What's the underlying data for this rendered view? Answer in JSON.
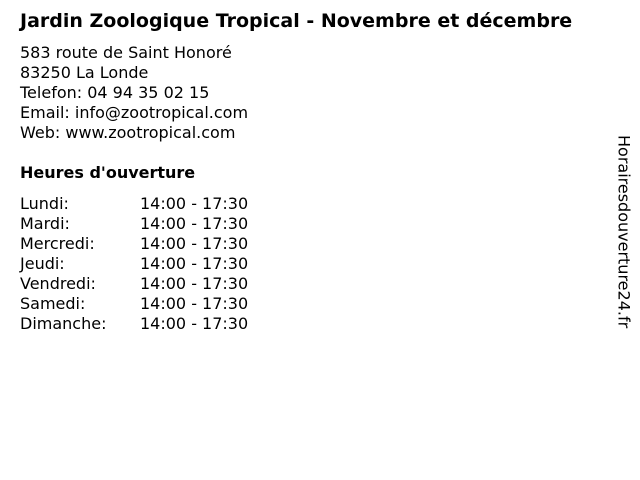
{
  "title": "Jardin Zoologique Tropical - Novembre et décembre",
  "address": {
    "street": "583 route de Saint Honoré",
    "city": "83250 La Londe",
    "phone": "Telefon: 04 94 35 02 15",
    "email": "Email: info@zootropical.com",
    "web": "Web: www.zootropical.com"
  },
  "hours_heading": "Heures d'ouverture",
  "hours": [
    {
      "day": "Lundi:",
      "time": "14:00 - 17:30"
    },
    {
      "day": "Mardi:",
      "time": "14:00 - 17:30"
    },
    {
      "day": "Mercredi:",
      "time": "14:00 - 17:30"
    },
    {
      "day": "Jeudi:",
      "time": "14:00 - 17:30"
    },
    {
      "day": "Vendredi:",
      "time": "14:00 - 17:30"
    },
    {
      "day": "Samedi:",
      "time": "14:00 - 17:30"
    },
    {
      "day": "Dimanche:",
      "time": "14:00 - 17:30"
    }
  ],
  "side_credit": "Horairesdouverture24.fr"
}
